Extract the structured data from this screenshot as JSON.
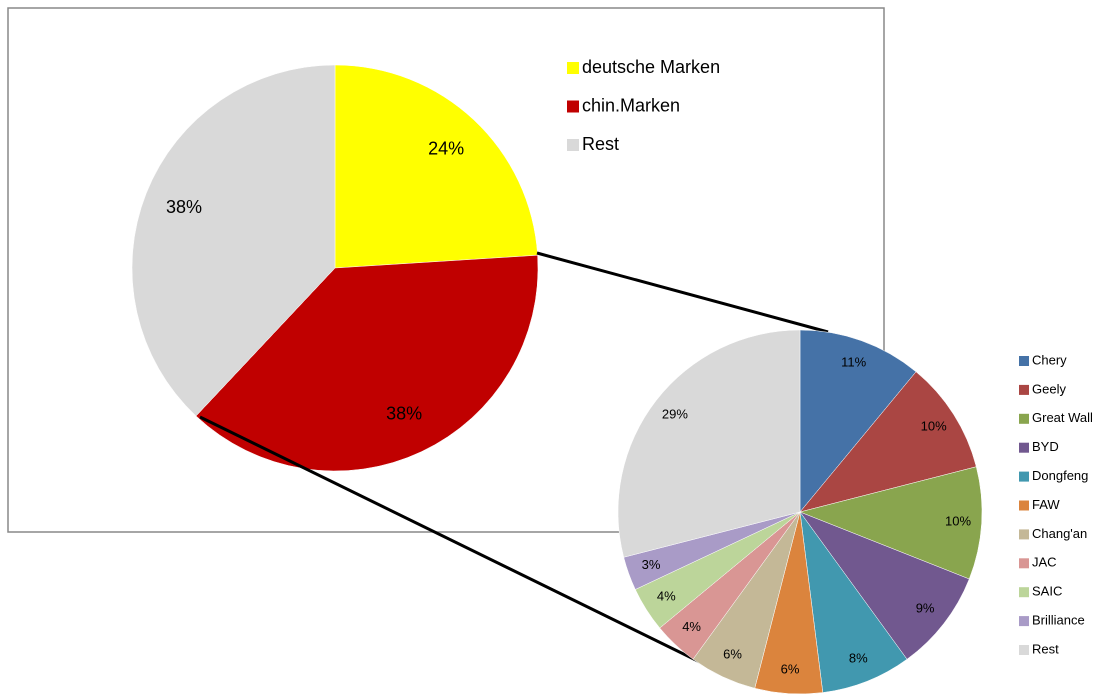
{
  "chart_data": [
    {
      "type": "pie",
      "categories": [
        "deutsche Marken",
        "chin.Marken",
        "Rest"
      ],
      "values": [
        24,
        38,
        38
      ],
      "value_labels": [
        "24%",
        "38%",
        "38%"
      ],
      "colors": [
        "#ffff00",
        "#c00000",
        "#d9d9d9"
      ]
    },
    {
      "type": "pie",
      "categories": [
        "Chery",
        "Geely",
        "Great Wall",
        "BYD",
        "Dongfeng",
        "FAW",
        "Chang'an",
        "JAC",
        "SAIC",
        "Brilliance",
        "Rest"
      ],
      "values": [
        11,
        10,
        10,
        9,
        8,
        6,
        6,
        4,
        4,
        3,
        29
      ],
      "value_labels": [
        "11%",
        "10%",
        "10%",
        "9%",
        "8%",
        "6%",
        "6%",
        "4%",
        "4%",
        "3%",
        "29%"
      ],
      "colors": [
        "#4572a7",
        "#aa4643",
        "#89a54e",
        "#71588f",
        "#4198af",
        "#db843d",
        "#c4b897",
        "#d99694",
        "#bcd59a",
        "#a99bc7",
        "#d9d9d9"
      ]
    }
  ]
}
